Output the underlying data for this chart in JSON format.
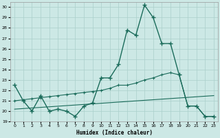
{
  "background_color": "#cce8e5",
  "grid_color": "#aacfcb",
  "line_color": "#1a6b5a",
  "xlabel": "Humidex (Indice chaleur)",
  "xlim": [
    -0.5,
    23.5
  ],
  "ylim": [
    19,
    30.5
  ],
  "yticks": [
    19,
    20,
    21,
    22,
    23,
    24,
    25,
    26,
    27,
    28,
    29,
    30
  ],
  "xticks": [
    0,
    1,
    2,
    3,
    4,
    5,
    6,
    7,
    8,
    9,
    10,
    11,
    12,
    13,
    14,
    15,
    16,
    17,
    18,
    19,
    20,
    21,
    22,
    23
  ],
  "line1_x": [
    0,
    1,
    2,
    3,
    4,
    5,
    6,
    7,
    8,
    9,
    10,
    11,
    12,
    13,
    14,
    15,
    16,
    17,
    18,
    19,
    20,
    21,
    22,
    23
  ],
  "line1_y": [
    22.5,
    21.0,
    20.0,
    21.5,
    20.0,
    20.2,
    20.0,
    19.5,
    20.5,
    20.8,
    23.2,
    23.2,
    24.5,
    27.8,
    27.3,
    30.2,
    29.0,
    26.5,
    26.5,
    23.5,
    20.5,
    20.5,
    19.5,
    19.5
  ],
  "line2_x": [
    0,
    1,
    2,
    3,
    4,
    5,
    6,
    7,
    8,
    9,
    10,
    11,
    12,
    13,
    14,
    15,
    16,
    17,
    18,
    19,
    20,
    21,
    22,
    23
  ],
  "line2_y": [
    21.0,
    21.1,
    21.2,
    21.3,
    21.4,
    21.5,
    21.6,
    21.7,
    21.8,
    21.9,
    22.0,
    22.2,
    22.5,
    22.5,
    22.7,
    23.0,
    23.2,
    23.5,
    23.7,
    23.5,
    20.5,
    20.5,
    19.5,
    19.5
  ],
  "line3_x": [
    0,
    23
  ],
  "line3_y": [
    20.2,
    21.5
  ]
}
